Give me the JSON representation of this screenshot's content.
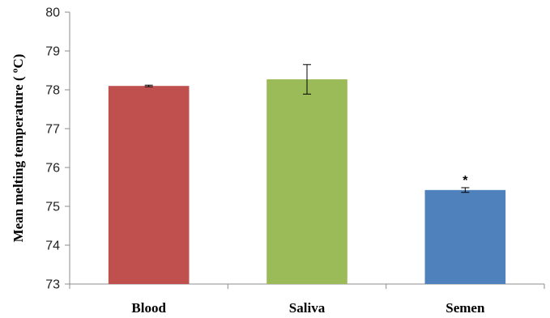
{
  "chart_data": {
    "type": "bar",
    "categories": [
      "Blood",
      "Saliva",
      "Semen"
    ],
    "values": [
      78.1,
      78.27,
      75.42
    ],
    "errors": [
      0.02,
      0.38,
      0.06
    ],
    "bar_colors": [
      "#c0504d",
      "#9bbb59",
      "#4f81bd"
    ],
    "annotations": [
      "",
      "",
      "*"
    ],
    "ylabel": "Mean  melting temperature ( ºC)",
    "xlabel": "",
    "ylim": [
      73,
      80
    ],
    "yticks": [
      73,
      74,
      75,
      76,
      77,
      78,
      79,
      80
    ],
    "grid": false,
    "legend": false
  }
}
